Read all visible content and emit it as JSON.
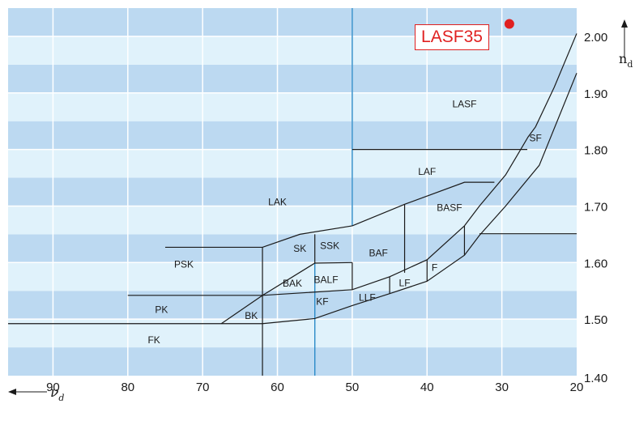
{
  "chart_data": {
    "type": "scatter",
    "title": "",
    "xlabel": "νd",
    "ylabel": "nd",
    "xlim": [
      96,
      20
    ],
    "ylim": [
      1.4,
      2.05
    ],
    "x_ticks": [
      "90",
      "80",
      "70",
      "60",
      "50",
      "40",
      "30",
      "20"
    ],
    "y_ticks": [
      "2.00",
      "1.90",
      "1.80",
      "1.70",
      "1.60",
      "1.50",
      "1.40"
    ],
    "x_tick_values": [
      90,
      80,
      70,
      60,
      50,
      40,
      30,
      20
    ],
    "y_tick_values": [
      2.0,
      1.9,
      1.8,
      1.7,
      1.6,
      1.5,
      1.4
    ],
    "x_direction": "decreasing to the right",
    "background": "alternating horizontal bands every 0.05 in nd",
    "grid": true,
    "highlight_label": "LASF35",
    "series": [
      {
        "x": [
          29
        ],
        "y": [
          2.022
        ],
        "color": "#e02020"
      }
    ],
    "regions": [
      {
        "label": "LASF",
        "nd": 1.88,
        "vd": 35.0
      },
      {
        "label": "SF",
        "nd": 1.82,
        "vd": 25.5
      },
      {
        "label": "LAF",
        "nd": 1.761,
        "vd": 40.0
      },
      {
        "label": "LAK",
        "nd": 1.707,
        "vd": 60.0
      },
      {
        "label": "BASF",
        "nd": 1.697,
        "vd": 37.0
      },
      {
        "label": "SK",
        "nd": 1.625,
        "vd": 57.0
      },
      {
        "label": "SSK",
        "nd": 1.63,
        "vd": 53.0
      },
      {
        "label": "BAF",
        "nd": 1.617,
        "vd": 46.5
      },
      {
        "label": "PSK",
        "nd": 1.597,
        "vd": 72.5
      },
      {
        "label": "F",
        "nd": 1.591,
        "vd": 39.0
      },
      {
        "label": "BALF",
        "nd": 1.57,
        "vd": 53.5
      },
      {
        "label": "LF",
        "nd": 1.564,
        "vd": 43.0
      },
      {
        "label": "BAK",
        "nd": 1.563,
        "vd": 58.0
      },
      {
        "label": "LLF",
        "nd": 1.538,
        "vd": 48.0
      },
      {
        "label": "KF",
        "nd": 1.531,
        "vd": 54.0
      },
      {
        "label": "PK",
        "nd": 1.517,
        "vd": 75.5
      },
      {
        "label": "BK",
        "nd": 1.506,
        "vd": 63.5
      },
      {
        "label": "FK",
        "nd": 1.463,
        "vd": 76.5
      }
    ],
    "colors": {
      "band_dark": "#bcd9f1",
      "band_light": "#e0f2fb",
      "grid": "#ffffff",
      "boundary": "#1a1a1a",
      "divider": "#2a8ac8",
      "highlight": "#e02020"
    }
  }
}
